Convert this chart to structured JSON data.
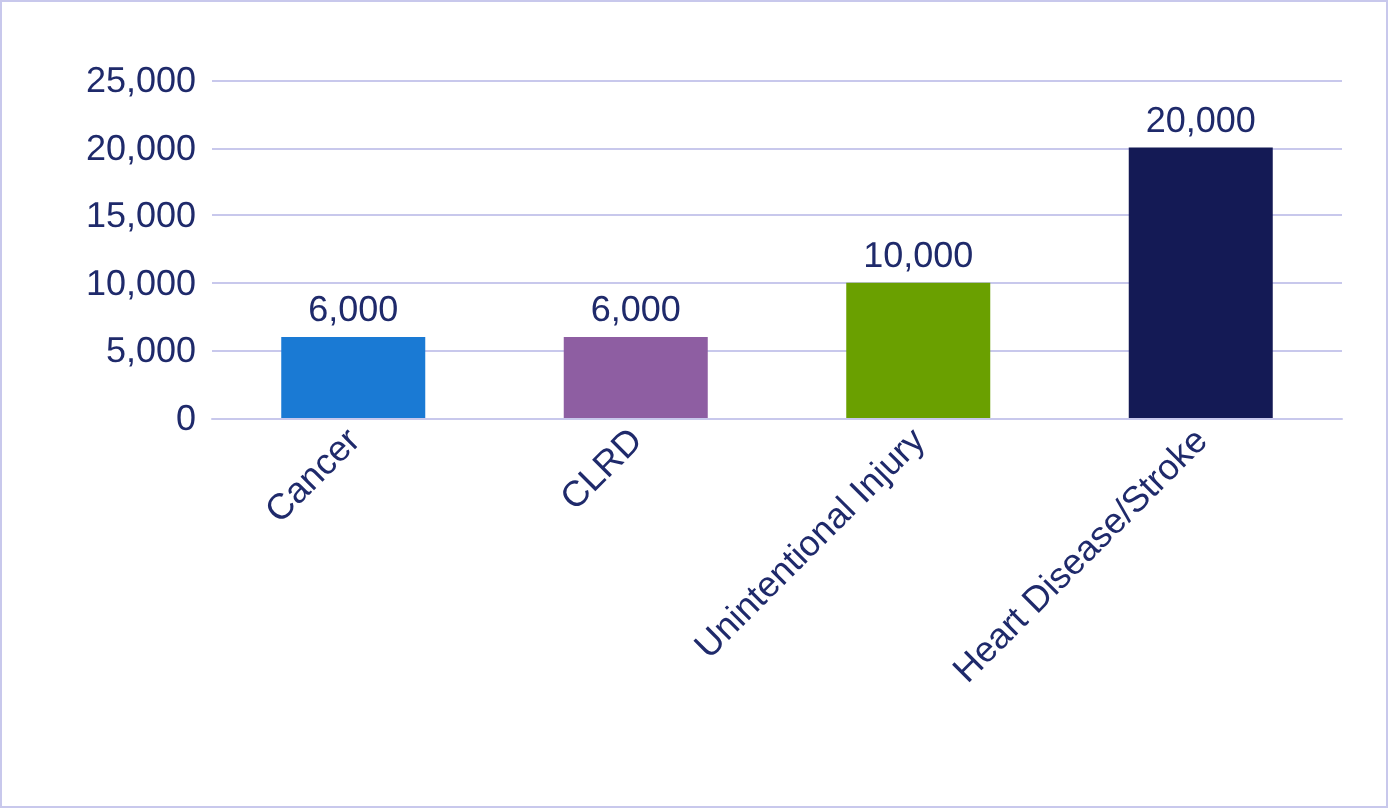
{
  "chart_data": {
    "type": "bar",
    "categories": [
      "Cancer",
      "CLRD",
      "Unintentional Injury",
      "Heart Disease/Stroke"
    ],
    "values": [
      6000,
      6000,
      10000,
      20000
    ],
    "value_labels": [
      "6,000",
      "6,000",
      "10,000",
      "20,000"
    ],
    "colors": [
      "#1a7ad4",
      "#8e5ea2",
      "#6aa000",
      "#141a55"
    ],
    "ylim": [
      0,
      25000
    ],
    "yticks": [
      0,
      {
        "value": 5000,
        "label": "5,000"
      },
      {
        "value": 10000,
        "label": "10,000"
      },
      {
        "value": 15000,
        "label": "15,000"
      },
      {
        "value": 20000,
        "label": "20,000"
      },
      {
        "value": 25000,
        "label": "25,000"
      }
    ],
    "grid": "y"
  }
}
